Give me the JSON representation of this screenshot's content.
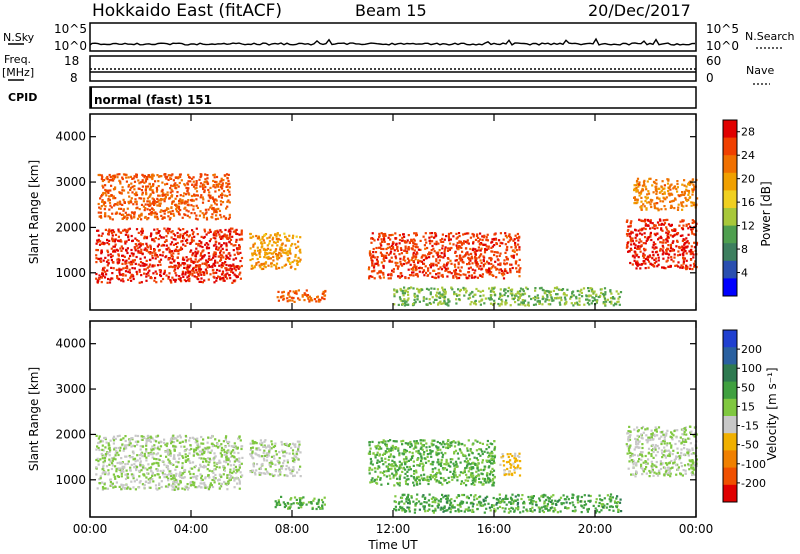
{
  "header": {
    "station": "Hokkaido East (fitACF)",
    "beam": "Beam 15",
    "date": "20/Dec/2017"
  },
  "top_panels": {
    "nsky_label": "N.Sky",
    "nsky_ticks": [
      "10^5",
      "10^0"
    ],
    "nsky_right_ticks": [
      "10^5",
      "10^0"
    ],
    "nsearch_label": "N.Search",
    "freq_label": "Freq.",
    "freq_unit": "[MHz]",
    "freq_ticks": [
      "18",
      "8"
    ],
    "nave_ticks": [
      "60",
      "0"
    ],
    "nave_label": "Nave",
    "cpid_label": "CPID",
    "cpid_value": "normal (fast) 151"
  },
  "colors": {
    "power_scale": [
      "#0000ff",
      "#2a4fb0",
      "#3d7f5f",
      "#4f9f4f",
      "#a8c83a",
      "#f0d020",
      "#f0a000",
      "#f07000",
      "#f04000",
      "#e00000"
    ],
    "velocity_scale": [
      "#2040d0",
      "#2a60a0",
      "#2e7a50",
      "#40a040",
      "#80c840",
      "#c8c8c8",
      "#f0b000",
      "#f08000",
      "#f05000",
      "#e00000"
    ]
  },
  "chart_data": [
    {
      "type": "heatmap",
      "quantity": "power",
      "ylabel": "Slant Range [km]",
      "xlabel": "",
      "x_ticks": [
        "00:00",
        "04:00",
        "08:00",
        "12:00",
        "16:00",
        "20:00",
        "00:00"
      ],
      "y_ticks": [
        "1000",
        "2000",
        "3000",
        "4000"
      ],
      "xlim_hours": [
        0,
        24
      ],
      "ylim_km": [
        180,
        4500
      ],
      "colorbar": {
        "label": "Power [dB]",
        "ticks": [
          "4",
          "8",
          "12",
          "16",
          "20",
          "24",
          "28"
        ],
        "range": [
          0,
          30
        ]
      },
      "regions": [
        {
          "t0": 0.2,
          "t1": 6.0,
          "r0": 800,
          "r1": 2000,
          "value": 27
        },
        {
          "t0": 0.3,
          "t1": 5.5,
          "r0": 2200,
          "r1": 3200,
          "value": 24
        },
        {
          "t0": 6.3,
          "t1": 8.3,
          "r0": 1100,
          "r1": 1900,
          "value": 20
        },
        {
          "t0": 7.3,
          "t1": 9.3,
          "r0": 380,
          "r1": 650,
          "value": 24
        },
        {
          "t0": 11.0,
          "t1": 17.0,
          "r0": 900,
          "r1": 1900,
          "value": 26
        },
        {
          "t0": 12.0,
          "t1": 21.0,
          "r0": 300,
          "r1": 700,
          "value": 12
        },
        {
          "t0": 21.2,
          "t1": 24.0,
          "r0": 1100,
          "r1": 2200,
          "value": 27
        },
        {
          "t0": 21.5,
          "t1": 24.0,
          "r0": 2400,
          "r1": 3100,
          "value": 22
        }
      ]
    },
    {
      "type": "heatmap",
      "quantity": "velocity",
      "ylabel": "Slant Range [km]",
      "xlabel": "Time UT",
      "x_ticks": [
        "00:00",
        "04:00",
        "08:00",
        "12:00",
        "16:00",
        "20:00",
        "00:00"
      ],
      "y_ticks": [
        "1000",
        "2000",
        "3000",
        "4000"
      ],
      "xlim_hours": [
        0,
        24
      ],
      "ylim_km": [
        180,
        4500
      ],
      "colorbar": {
        "label": "Velocity [m s⁻¹]",
        "ticks": [
          "200",
          "100",
          "50",
          "15",
          "-15",
          "-50",
          "-100",
          "-200"
        ],
        "range": [
          -250,
          250
        ]
      },
      "regions": [
        {
          "t0": 0.2,
          "t1": 6.0,
          "r0": 800,
          "r1": 2000,
          "value": 0
        },
        {
          "t0": 6.3,
          "t1": 8.3,
          "r0": 1100,
          "r1": 1900,
          "value": -10
        },
        {
          "t0": 7.3,
          "t1": 9.3,
          "r0": 380,
          "r1": 650,
          "value": 60
        },
        {
          "t0": 11.0,
          "t1": 16.0,
          "r0": 900,
          "r1": 1900,
          "value": 50
        },
        {
          "t0": 16.2,
          "t1": 17.0,
          "r0": 1100,
          "r1": 1600,
          "value": -60
        },
        {
          "t0": 12.0,
          "t1": 21.0,
          "r0": 300,
          "r1": 700,
          "value": 70
        },
        {
          "t0": 21.2,
          "t1": 24.0,
          "r0": 1100,
          "r1": 2200,
          "value": 0
        }
      ]
    }
  ]
}
